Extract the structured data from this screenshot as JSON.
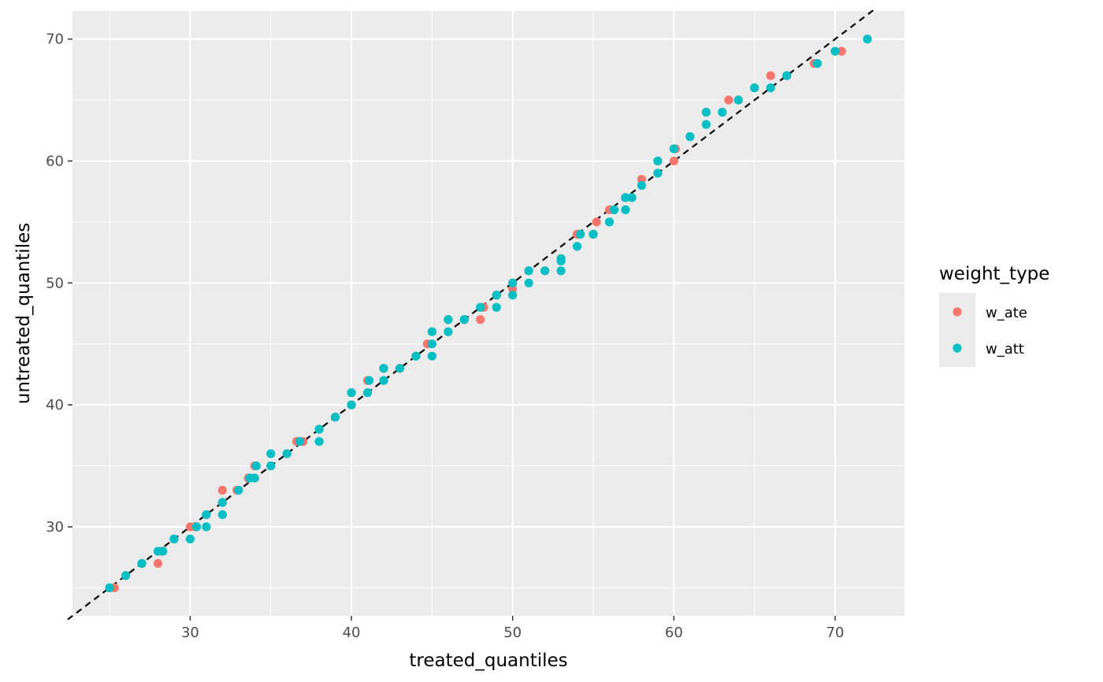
{
  "chart_data": {
    "type": "scatter",
    "xlabel": "treated_quantiles",
    "ylabel": "untreated_quantiles",
    "xlim": [
      22.7,
      74.3
    ],
    "ylim": [
      22.7,
      72.3
    ],
    "x_ticks": [
      30,
      40,
      50,
      60,
      70
    ],
    "y_ticks": [
      30,
      40,
      50,
      60,
      70
    ],
    "grid": true,
    "reference_line": {
      "type": "y=x",
      "style": "dashed",
      "color": "#000000"
    },
    "legend": {
      "title": "weight_type",
      "placement": "right",
      "entries": [
        {
          "label": "w_ate",
          "color": "#F8766D"
        },
        {
          "label": "w_att",
          "color": "#00BFC4"
        }
      ]
    },
    "series": [
      {
        "name": "w_ate",
        "color": "#F8766D",
        "points": [
          [
            25,
            25
          ],
          [
            25.3,
            25
          ],
          [
            26,
            26
          ],
          [
            27,
            27
          ],
          [
            28,
            27
          ],
          [
            28.2,
            28
          ],
          [
            29,
            29
          ],
          [
            30,
            30
          ],
          [
            30.3,
            30
          ],
          [
            31,
            31
          ],
          [
            32,
            33
          ],
          [
            32.9,
            33
          ],
          [
            33.6,
            34
          ],
          [
            34,
            35
          ],
          [
            35,
            35
          ],
          [
            36,
            36
          ],
          [
            36.6,
            37
          ],
          [
            37,
            37
          ],
          [
            38,
            38
          ],
          [
            39,
            39
          ],
          [
            40,
            40
          ],
          [
            40,
            41
          ],
          [
            41,
            42
          ],
          [
            42,
            43
          ],
          [
            43,
            43
          ],
          [
            44,
            44
          ],
          [
            44.7,
            45
          ],
          [
            45,
            46
          ],
          [
            46,
            47
          ],
          [
            47,
            47
          ],
          [
            48,
            47
          ],
          [
            48.2,
            48
          ],
          [
            49,
            49
          ],
          [
            50,
            49.5
          ],
          [
            50,
            50
          ],
          [
            51,
            51
          ],
          [
            52,
            51
          ],
          [
            53,
            52
          ],
          [
            54,
            54
          ],
          [
            54.1,
            54
          ],
          [
            55,
            54
          ],
          [
            55.2,
            55
          ],
          [
            56,
            56
          ],
          [
            57,
            57
          ],
          [
            58,
            58.5
          ],
          [
            59,
            60
          ],
          [
            60,
            60
          ],
          [
            60.1,
            61
          ],
          [
            61,
            62
          ],
          [
            62,
            64
          ],
          [
            63.4,
            65
          ],
          [
            64,
            65
          ],
          [
            65,
            66
          ],
          [
            66,
            67
          ],
          [
            67,
            67
          ],
          [
            68.7,
            68
          ],
          [
            70.4,
            69
          ]
        ]
      },
      {
        "name": "w_att",
        "color": "#00BFC4",
        "points": [
          [
            25,
            25
          ],
          [
            26,
            26
          ],
          [
            27,
            27
          ],
          [
            28,
            28
          ],
          [
            28.3,
            28
          ],
          [
            29,
            29
          ],
          [
            30,
            29
          ],
          [
            30.4,
            30
          ],
          [
            31,
            30
          ],
          [
            31,
            31
          ],
          [
            32,
            31
          ],
          [
            32,
            32
          ],
          [
            33,
            33
          ],
          [
            33.7,
            34
          ],
          [
            34,
            34
          ],
          [
            34.1,
            35
          ],
          [
            35,
            35
          ],
          [
            35,
            36
          ],
          [
            36,
            36
          ],
          [
            36.8,
            37
          ],
          [
            38,
            37
          ],
          [
            38,
            38
          ],
          [
            39,
            39
          ],
          [
            40,
            40
          ],
          [
            40,
            41
          ],
          [
            41,
            41
          ],
          [
            41.1,
            42
          ],
          [
            42,
            42
          ],
          [
            42,
            43
          ],
          [
            43,
            43
          ],
          [
            44,
            44
          ],
          [
            45,
            44
          ],
          [
            45,
            45
          ],
          [
            45,
            46
          ],
          [
            46,
            46
          ],
          [
            46,
            47
          ],
          [
            47,
            47
          ],
          [
            48,
            48
          ],
          [
            49,
            48
          ],
          [
            49,
            49
          ],
          [
            50,
            49
          ],
          [
            50,
            50
          ],
          [
            51,
            50
          ],
          [
            51,
            51
          ],
          [
            52,
            51
          ],
          [
            53,
            51
          ],
          [
            53,
            51.8
          ],
          [
            53,
            52
          ],
          [
            54,
            53
          ],
          [
            54.2,
            54
          ],
          [
            55,
            54
          ],
          [
            56,
            55
          ],
          [
            56.3,
            56
          ],
          [
            57,
            56
          ],
          [
            57,
            57
          ],
          [
            57.4,
            57
          ],
          [
            58,
            58
          ],
          [
            59,
            59
          ],
          [
            59,
            60
          ],
          [
            60,
            61
          ],
          [
            61,
            62
          ],
          [
            62,
            63
          ],
          [
            62,
            64
          ],
          [
            63,
            64
          ],
          [
            64,
            65
          ],
          [
            65,
            66
          ],
          [
            66,
            66
          ],
          [
            67,
            67
          ],
          [
            68.9,
            68
          ],
          [
            70,
            69
          ],
          [
            72,
            70
          ]
        ]
      }
    ]
  }
}
